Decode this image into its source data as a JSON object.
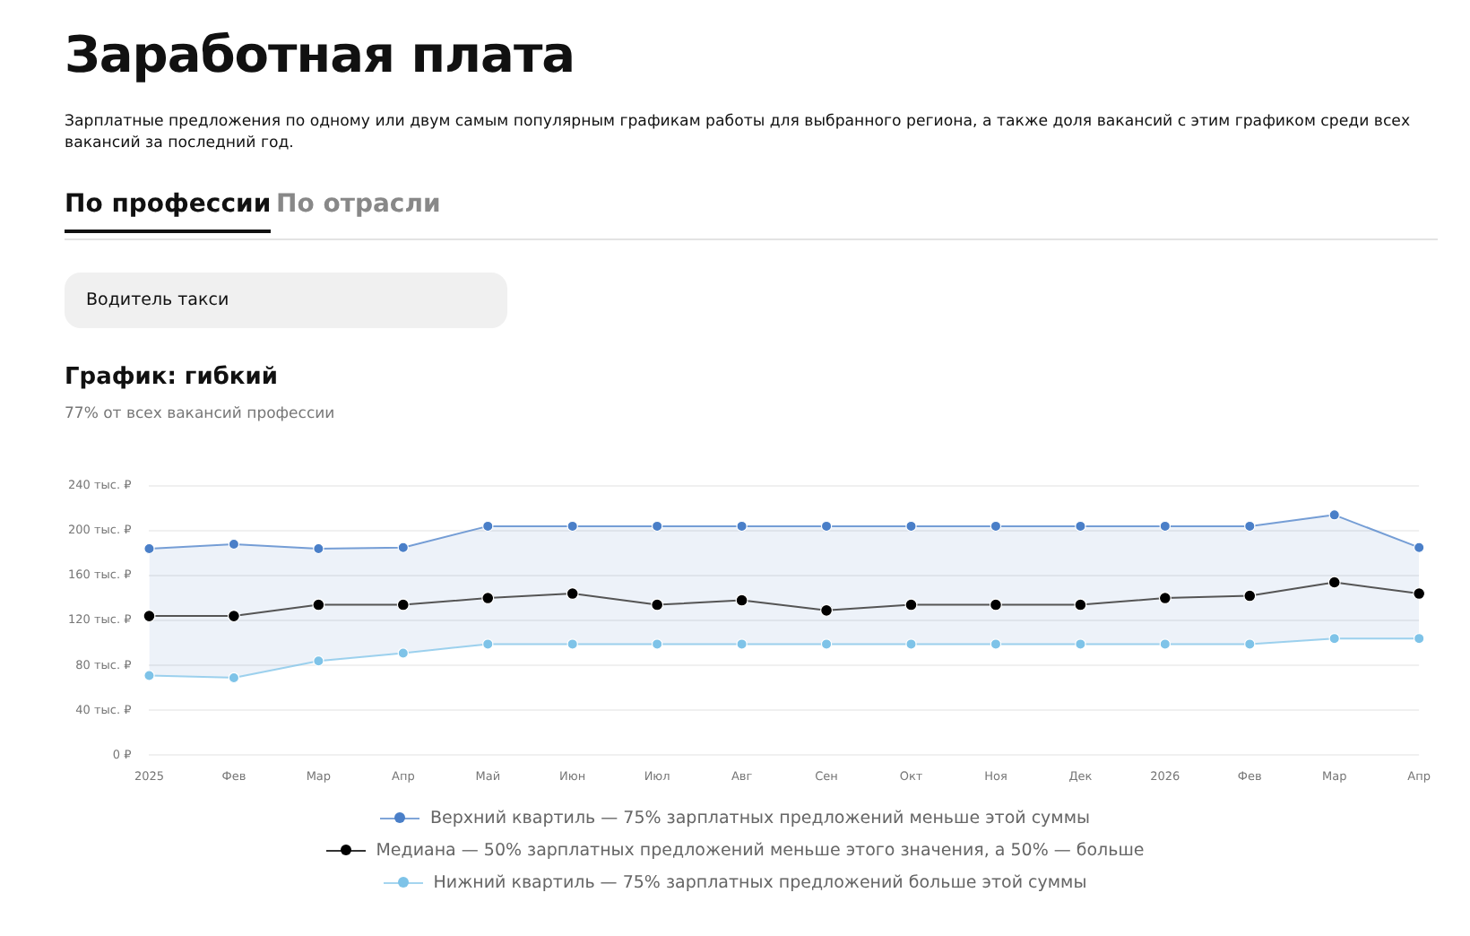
{
  "chart_data": {
    "type": "line",
    "title": "Заработная плата",
    "subtitle": "Зарплатные предложения по одному или двум самым популярным графикам работы для выбранного региона, а также доля вакансий с этим графиком среди всех вакансий за последний год.",
    "annotations": [
      "По профессии",
      "По отрасли",
      "Водитель такси",
      "График: гибкий",
      "77% от всех вакансий профессии"
    ],
    "categories": [
      "2025",
      "Фев",
      "Мар",
      "Апр",
      "Май",
      "Июн",
      "Июл",
      "Авг",
      "Сен",
      "Окт",
      "Ноя",
      "Дек",
      "2026",
      "Фев",
      "Мар",
      "Апр"
    ],
    "series": [
      {
        "name": "Верхний квартиль — 75% зарплатных предложений меньше этой суммы",
        "color": "#4a7fc8",
        "values": [
          184,
          188,
          184,
          185,
          204,
          204,
          204,
          204,
          204,
          204,
          204,
          204,
          204,
          204,
          214,
          185
        ]
      },
      {
        "name": "Медиана — 50% зарплатных предложений меньше этого значения, а 50% — больше",
        "color": "#000000",
        "values": [
          124,
          124,
          134,
          134,
          140,
          144,
          134,
          138,
          129,
          134,
          134,
          134,
          140,
          142,
          154,
          144
        ],
        "lower": [
          71,
          69,
          84,
          91,
          99,
          99,
          99,
          99,
          99,
          99,
          99,
          99,
          99,
          99,
          104,
          104
        ],
        "upper": [
          184,
          188,
          184,
          185,
          204,
          204,
          204,
          204,
          204,
          204,
          204,
          204,
          204,
          204,
          214,
          185
        ]
      },
      {
        "name": "Нижний квартиль — 75% зарплатных предложений больше этой суммы",
        "color": "#7ec3e8",
        "values": [
          71,
          69,
          84,
          91,
          99,
          99,
          99,
          99,
          99,
          99,
          99,
          99,
          99,
          99,
          104,
          104
        ]
      }
    ],
    "ylim": [
      0,
      240
    ],
    "yticks": [
      {
        "value": 0,
        "label": "0 ₽"
      },
      {
        "value": 40,
        "label": "40 тыс. ₽"
      },
      {
        "value": 80,
        "label": "80 тыс. ₽"
      },
      {
        "value": 120,
        "label": "120 тыс. ₽"
      },
      {
        "value": 160,
        "label": "160 тыс. ₽"
      },
      {
        "value": 200,
        "label": "200 тыс. ₽"
      },
      {
        "value": 240,
        "label": "240 тыс. ₽"
      }
    ],
    "grid": "y",
    "legend": "bottom",
    "marker": "circle",
    "line_style": "solid"
  }
}
